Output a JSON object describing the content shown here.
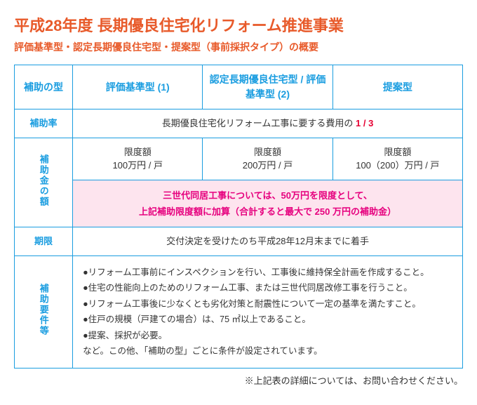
{
  "title": "平成28年度 長期優良住宅化リフォーム推進事業",
  "subtitle": "評価基準型・認定長期優良住宅型・提案型（事前採択タイプ）の概要",
  "headers": {
    "col0": "補助の型",
    "col1": "評価基準型 (1)",
    "col2": "認定長期優良住宅型 / 評価基準型 (2)",
    "col3": "提案型"
  },
  "rows": {
    "ratio_label": "補助率",
    "ratio_text_a": "長期優良住宅化リフォーム工事に要する費用の",
    "ratio_fraction": "1 / 3",
    "amount_label": "補助金の額",
    "limit_caption": "限度額",
    "limit1": "100万円 / 戸",
    "limit2": "200万円 / 戸",
    "limit3": "100（200）万円 / 戸",
    "pink_line1": "三世代同居工事については、50万円を限度として、",
    "pink_line2_a": "上記補助限度額に加算（",
    "pink_line2_b": "合計すると最大で 250 万円の補助金",
    "pink_line2_c": "）",
    "deadline_label": "期限",
    "deadline_text": "交付決定を受けたのち平成28年12月末までに着手",
    "req_label": "補助要件等",
    "req_items": [
      "●リフォーム工事前にインスペクションを行い、工事後に維持保全計画を作成すること。",
      "●住宅の性能向上のためのリフォーム工事、または三世代同居改修工事を行うこと。",
      "●リフォーム工事後に少なくとも劣化対策と耐震性について一定の基準を満たすこと。",
      "●住戸の規模（戸建ての場合）は、75 ㎡以上であること。",
      "●提案、採択が必要。",
      "など。この他、「補助の型」ごとに条件が設定されています。"
    ]
  },
  "footnote": "※上記表の詳細については、お問い合わせください。",
  "colors": {
    "brand_orange": "#e85a2a",
    "brand_blue": "#1a9de0",
    "magenta": "#e6007e",
    "pink_bg": "#fde4ee",
    "red": "#e60033",
    "text": "#333333",
    "bg": "#ffffff"
  },
  "table": {
    "type": "table",
    "column_widths_pct": [
      13,
      29,
      29,
      29
    ],
    "border_color": "#1a9de0"
  }
}
